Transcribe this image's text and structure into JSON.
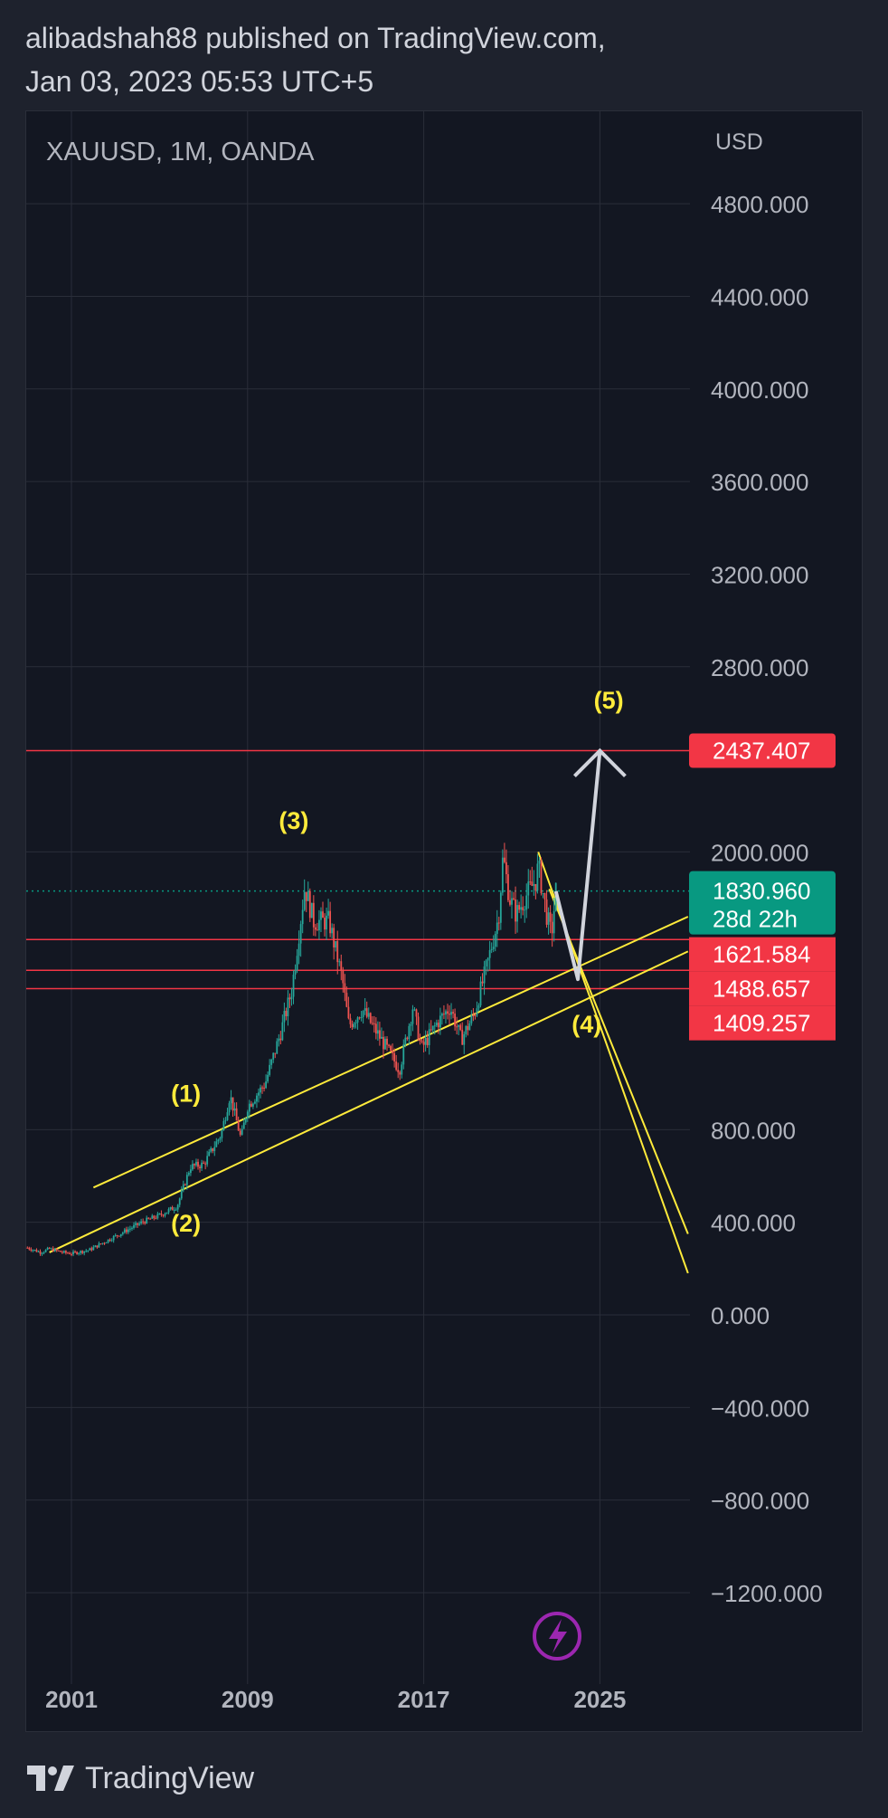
{
  "header": {
    "line1": "alibadshah88 published on TradingView.com,",
    "line2": "Jan 03, 2023 05:53 UTC+5"
  },
  "footer": {
    "brand": "TradingView"
  },
  "colors": {
    "background": "#1e222d",
    "chart_background": "#131722",
    "up_candle": "#26a69a",
    "down_candle": "#ef5350",
    "level_line": "#f23645",
    "trend_line": "#ffeb3b",
    "projection": "#d1d4dc",
    "current_price": "#089981",
    "icon_accent": "#9c27b0"
  },
  "chart_data": {
    "type": "candlestick",
    "title": "XAUUSD, 1M, OANDA",
    "y_unit": "USD",
    "ylim": [
      -1600,
      5100
    ],
    "xlim": [
      1999,
      2029
    ],
    "y_ticks": [
      "4800.000",
      "4400.000",
      "4000.000",
      "3600.000",
      "3200.000",
      "2800.000",
      "2000.000",
      "800.000",
      "400.000",
      "0.000",
      "-400.000",
      "-800.000",
      "-1200.000"
    ],
    "x_ticks": [
      "2001",
      "2009",
      "2017",
      "2025"
    ],
    "grid": true,
    "price_path": [
      [
        1999.0,
        290
      ],
      [
        1999.6,
        270
      ],
      [
        2000.0,
        285
      ],
      [
        2000.6,
        270
      ],
      [
        2001.0,
        265
      ],
      [
        2001.8,
        280
      ],
      [
        2002.6,
        320
      ],
      [
        2003.4,
        360
      ],
      [
        2004.2,
        400
      ],
      [
        2005.0,
        430
      ],
      [
        2005.8,
        470
      ],
      [
        2006.4,
        640
      ],
      [
        2007.0,
        650
      ],
      [
        2007.8,
        780
      ],
      [
        2008.2,
        950
      ],
      [
        2008.7,
        760
      ],
      [
        2009.0,
        900
      ],
      [
        2009.8,
        1000
      ],
      [
        2010.5,
        1220
      ],
      [
        2011.0,
        1400
      ],
      [
        2011.6,
        1850
      ],
      [
        2012.0,
        1700
      ],
      [
        2012.7,
        1700
      ],
      [
        2013.3,
        1450
      ],
      [
        2013.6,
        1250
      ],
      [
        2014.2,
        1320
      ],
      [
        2015.0,
        1200
      ],
      [
        2015.9,
        1060
      ],
      [
        2016.5,
        1330
      ],
      [
        2016.9,
        1150
      ],
      [
        2017.6,
        1260
      ],
      [
        2018.2,
        1330
      ],
      [
        2018.7,
        1190
      ],
      [
        2019.3,
        1300
      ],
      [
        2019.9,
        1520
      ],
      [
        2020.4,
        1720
      ],
      [
        2020.6,
        1980
      ],
      [
        2020.9,
        1800
      ],
      [
        2021.2,
        1730
      ],
      [
        2021.7,
        1820
      ],
      [
        2022.1,
        1880
      ],
      [
        2022.2,
        1940
      ],
      [
        2022.6,
        1720
      ],
      [
        2022.8,
        1640
      ],
      [
        2023.0,
        1830
      ]
    ],
    "horizontal_levels": [
      2437.407,
      1621.584,
      1488.657,
      1409.257
    ],
    "current_price": "1830.960",
    "countdown": "28d 22h",
    "level_labels": [
      "2437.407",
      "1621.584",
      "1488.657",
      "1409.257"
    ],
    "wave_labels": [
      {
        "label": "(1)",
        "x": 2006.2,
        "y": 920
      },
      {
        "label": "(2)",
        "x": 2006.2,
        "y": 360
      },
      {
        "label": "(3)",
        "x": 2011.1,
        "y": 2100
      },
      {
        "label": "(4)",
        "x": 2024.4,
        "y": 1220
      },
      {
        "label": "(5)",
        "x": 2025.4,
        "y": 2620
      }
    ],
    "trend_lines": [
      {
        "points": [
          [
            2000.0,
            270
          ],
          [
            2029.0,
            1570
          ]
        ]
      },
      {
        "points": [
          [
            2002.0,
            550
          ],
          [
            2029.0,
            1720
          ]
        ]
      },
      {
        "points": [
          [
            2022.2,
            2000
          ],
          [
            2029.0,
            180
          ]
        ]
      },
      {
        "points": [
          [
            2022.7,
            1840
          ],
          [
            2029.0,
            350
          ]
        ]
      }
    ],
    "projection_path": [
      [
        2023.0,
        1830
      ],
      [
        2024.0,
        1450
      ],
      [
        2025.0,
        2437
      ]
    ]
  }
}
